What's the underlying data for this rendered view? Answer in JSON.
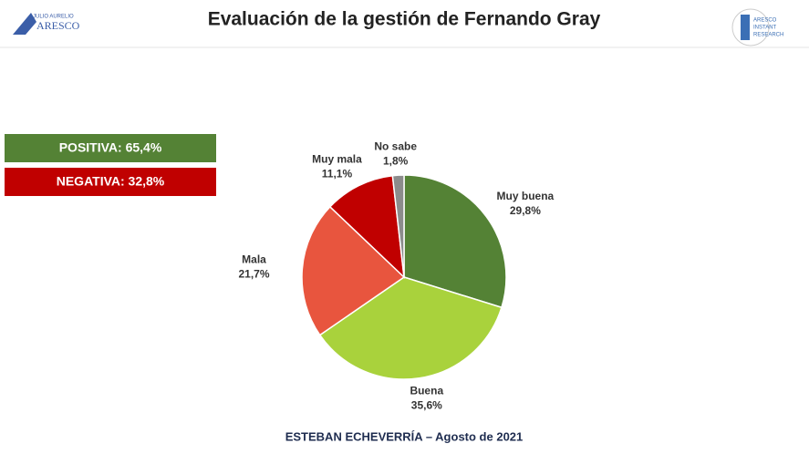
{
  "logos": {
    "left_small": "JULIO AURELIO",
    "left": "ARESCO",
    "right": [
      "ARESCO",
      "INSTANT",
      "RESEARCH"
    ]
  },
  "chart_data": {
    "type": "pie",
    "title": "Evaluación de la gestión de Fernando Gray",
    "categories": [
      "Muy buena",
      "Buena",
      "Mala",
      "Muy mala",
      "No sabe"
    ],
    "values": [
      29.8,
      35.6,
      21.7,
      11.1,
      1.8
    ],
    "value_labels": [
      "29,8%",
      "35,6%",
      "21,7%",
      "11,1%",
      "1,8%"
    ],
    "colors": [
      "#548235",
      "#a9d23c",
      "#e8553e",
      "#c00000",
      "#8c8c8c"
    ],
    "annotations": [
      {
        "text": "POSITIVA: 65,4%",
        "color": "#548235"
      },
      {
        "text": "NEGATIVA: 32,8%",
        "color": "#c00000"
      }
    ],
    "caption": "ESTEBAN ECHEVERRÍA – Agosto de 2021"
  }
}
